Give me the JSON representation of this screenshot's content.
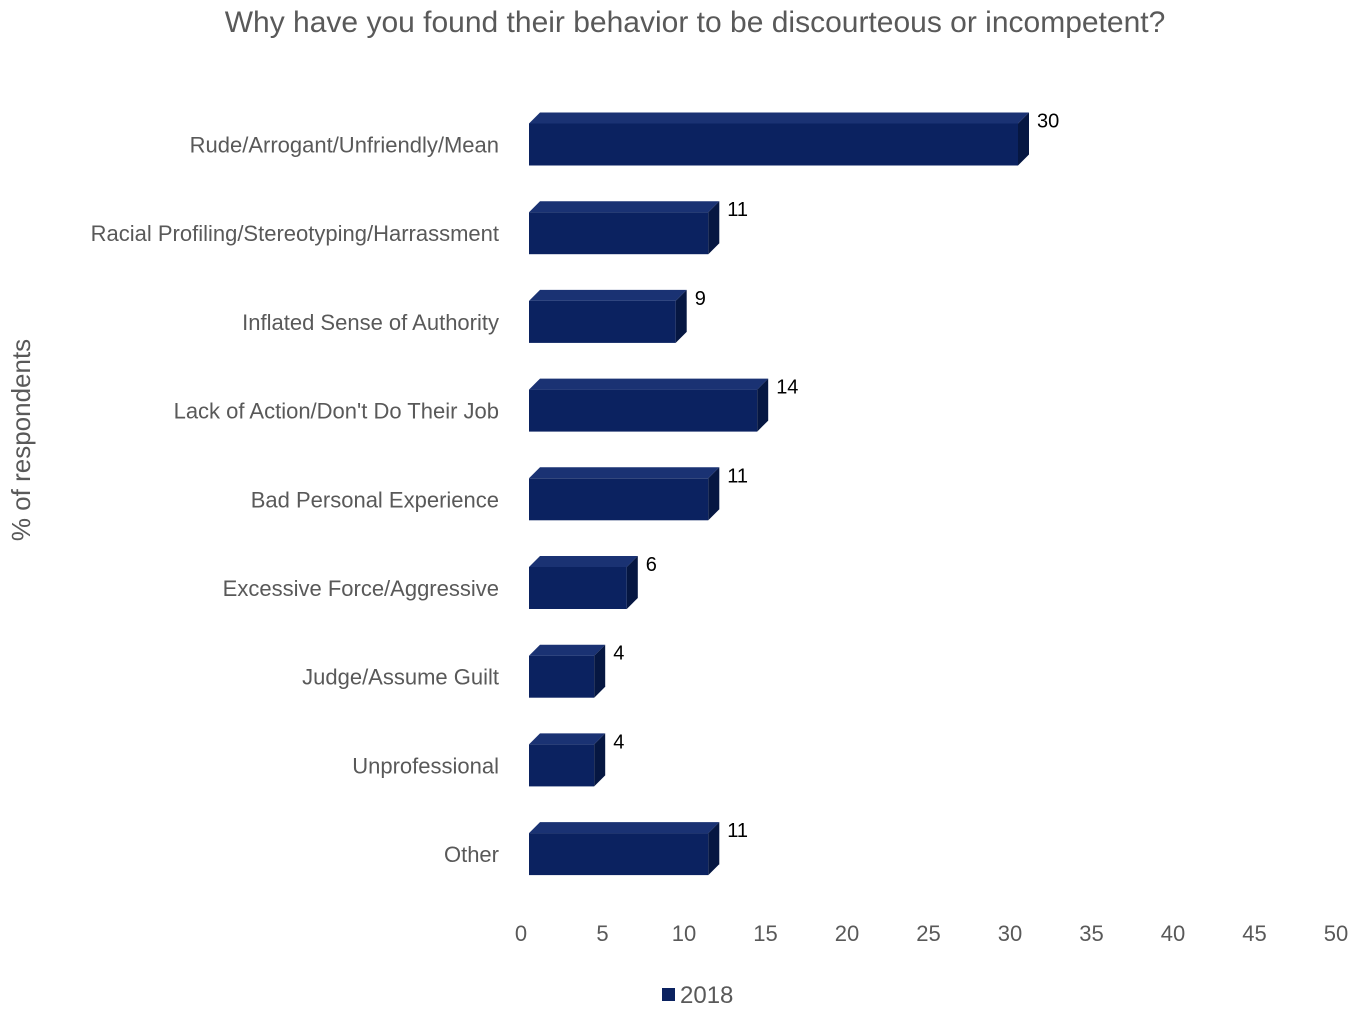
{
  "chart_data": {
    "type": "bar",
    "orientation": "horizontal",
    "title": "Why have you found their behavior to be discourteous or incompetent?",
    "ylabel": "% of respondents",
    "xlabel": "",
    "categories": [
      "Rude/Arrogant/Unfriendly/Mean",
      "Racial Profiling/Stereotyping/Harrassment",
      "Inflated Sense of Authority",
      "Lack of Action/Don't Do Their Job",
      "Bad Personal Experience",
      "Excessive Force/Aggressive",
      "Judge/Assume Guilt",
      "Unprofessional",
      "Other"
    ],
    "series": [
      {
        "name": "2018",
        "color": "#0b2260",
        "values": [
          30,
          11,
          9,
          14,
          11,
          6,
          4,
          4,
          11
        ]
      }
    ],
    "xlim": [
      0,
      50
    ],
    "x_ticks": [
      "0",
      "5",
      "10",
      "15",
      "20",
      "25",
      "30",
      "35",
      "40",
      "45",
      "50"
    ],
    "grid": false,
    "legend_position": "bottom",
    "bar_style": "3d"
  }
}
